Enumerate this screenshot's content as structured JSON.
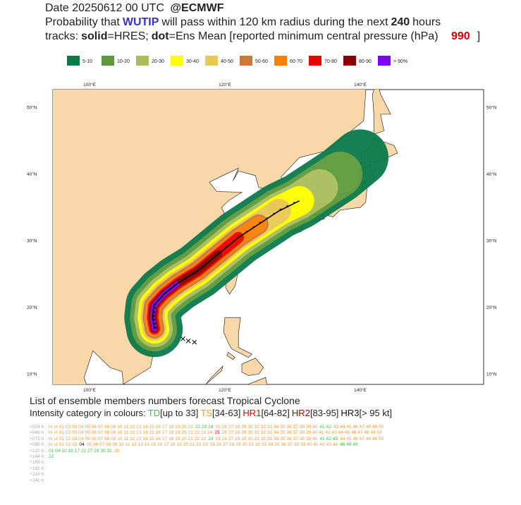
{
  "header": {
    "date": "Date 20250612 00 UTC",
    "source": "@ECMWF",
    "prob_prefix": "Probability that",
    "storm": "WUTIP",
    "prob_middle": "will pass within 120 km radius during the next",
    "hours": "240",
    "prob_suffix": "hours",
    "tracks_prefix": "tracks:",
    "solid": "solid",
    "solid_desc": "=HRES;",
    "dot": "dot",
    "dot_desc": "=Ens Mean [reported minimum central pressure (hPa)",
    "pressure": "990",
    "close": "]"
  },
  "legend": {
    "items": [
      {
        "label": "5-10",
        "color": "#0b7a4b"
      },
      {
        "label": "10-20",
        "color": "#5b9a3c"
      },
      {
        "label": "20-30",
        "color": "#a9bd5c"
      },
      {
        "label": "30-40",
        "color": "#ffff00"
      },
      {
        "label": "40-50",
        "color": "#e9c853"
      },
      {
        "label": "50-60",
        "color": "#c97a3b"
      },
      {
        "label": "60-70",
        "color": "#ff8000"
      },
      {
        "label": "70-80",
        "color": "#ee0000"
      },
      {
        "label": "80-90",
        "color": "#8b0000"
      },
      {
        "label": "> 90%",
        "color": "#7f00ff"
      }
    ]
  },
  "map": {
    "lon_labels": [
      "100°E",
      "120°E",
      "140°E"
    ],
    "lat_labels": [
      "50°N",
      "40°N",
      "30°N",
      "20°N",
      "10°N"
    ]
  },
  "members": {
    "title": "List of ensemble members numbers forecast Tropical Cyclone",
    "intensity_prefix": "Intensity category in colours:",
    "categories": [
      {
        "name": "TD",
        "range": "[up to 33]",
        "color": "#33cc33"
      },
      {
        "name": "TS",
        "range": "[34-63]",
        "color": "#ff9933"
      },
      {
        "name": "HR1",
        "range": "[64-82]",
        "color": "#ee0000"
      },
      {
        "name": "HR2",
        "range": "[83-95]",
        "color": "#990000"
      },
      {
        "name": "HR3",
        "range": "[> 95 kt]",
        "color": "#111111"
      }
    ],
    "rows": [
      {
        "label": "+024 h :",
        "segments": [
          {
            "text": "hr ct 01 02 03 04 05 06 07 08 09 10 11 12 13 14 15 16 17 18 19 20 21",
            "color": "#ff9933"
          },
          {
            "text": "22 23 24",
            "color": "#33cc33"
          },
          {
            "text": "25 26 27 28 29 30 31 32 33 34 35 36 37 38 39 40",
            "color": "#ff9933"
          },
          {
            "text": "41 42",
            "color": "#33cc33"
          },
          {
            "text": "43 44 45 46 47 48 49 50",
            "color": "#ff9933"
          }
        ]
      },
      {
        "label": "+048 h :",
        "segments": [
          {
            "text": "hr ct 01 02 03 04 05 06 07 08 09 10 11 12 13 14 15 16 17 18 19 20 21 22 23 24",
            "color": "#ff9933"
          },
          {
            "text": "25",
            "color": "#ee0000"
          },
          {
            "text": "26 27 28 29 30 31 32 33 34 35 36 37 38 39 40 41 42 43 44 45 46 47 48 49 50",
            "color": "#ff9933"
          }
        ]
      },
      {
        "label": "+072 h :",
        "segments": [
          {
            "text": "hr ct 01 02 03 04 05 06 07 08 09 10 11 12 13 14 15 16 17 18 19 20 21 22 23",
            "color": "#ff9933"
          },
          {
            "text": "24",
            "color": "#33cc33"
          },
          {
            "text": "25 26 27 28 29 30 31 32 33 34 35 36 37 38 39 40",
            "color": "#ff9933"
          },
          {
            "text": "41 42 43",
            "color": "#33cc33"
          },
          {
            "text": "44 45 46 47 48 49 50",
            "color": "#ff9933"
          }
        ]
      },
      {
        "label": "+096 h :",
        "segments": [
          {
            "text": "hr ct 01 02 03",
            "color": "#ff9933"
          },
          {
            "text": "04",
            "color": "#111111"
          },
          {
            "text": "05 06 07 08 09 10 11 12 13 14 15 16 17 18 19 20 21 22 23",
            "color": "#ff9933"
          },
          {
            "text": "25 26 27 28 29 30 31 32 33 34 35 36 37 38 39 40 41 42 43 44",
            "color": "#ff9933"
          },
          {
            "text": "46 48 49",
            "color": "#33cc33"
          }
        ]
      },
      {
        "label": "+120 h :",
        "segments": [
          {
            "text": "01 04 10 16 17 22 27 28 30 31",
            "color": "#33cc33"
          },
          {
            "text": "35",
            "color": "#ff9933"
          }
        ]
      },
      {
        "label": "+144 h :",
        "segments": [
          {
            "text": "22",
            "color": "#33cc33"
          }
        ]
      },
      {
        "label": "+168 h :",
        "segments": []
      },
      {
        "label": "+192 h :",
        "segments": []
      },
      {
        "label": "+216 h :",
        "segments": []
      },
      {
        "label": "+240 h :",
        "segments": []
      }
    ]
  }
}
